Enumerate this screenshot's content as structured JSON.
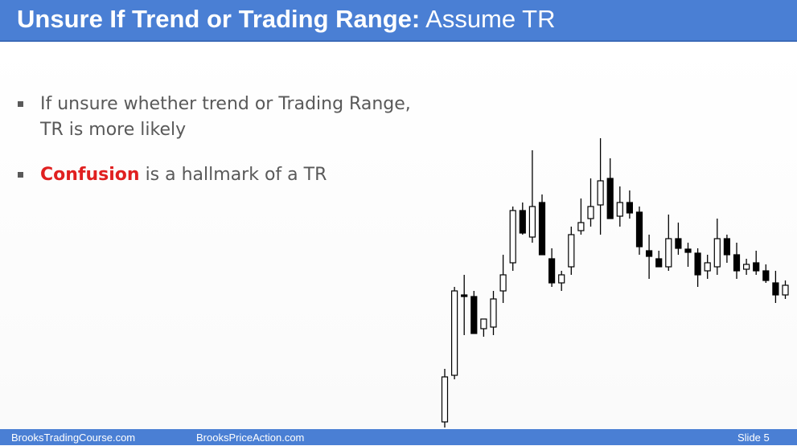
{
  "title": {
    "bold": "Unsure If Trend or Trading Range:",
    "normal": "Assume TR"
  },
  "bullets": [
    {
      "line1": "If unsure whether trend or Trading Range,",
      "line2": "TR is more likely"
    },
    {
      "emphasis": "Confusion",
      "rest": " is a hallmark of a TR"
    }
  ],
  "footer": {
    "left": "BrooksTradingCourse.com",
    "center": "BrooksPriceAction.com",
    "right": "Slide  5"
  },
  "colors": {
    "title_bar": "#4a7fd4",
    "emphasis": "#e02020",
    "bullet_text": "#595959"
  },
  "chart_data": {
    "type": "candlestick",
    "bars": [
      {
        "o": 2,
        "h": 68,
        "l": -5,
        "c": 58
      },
      {
        "o": 60,
        "h": 170,
        "l": 55,
        "c": 165
      },
      {
        "o": 160,
        "h": 185,
        "l": 110,
        "c": 158
      },
      {
        "o": 158,
        "h": 165,
        "l": 120,
        "c": 112
      },
      {
        "o": 118,
        "h": 125,
        "l": 108,
        "c": 130
      },
      {
        "o": 120,
        "h": 165,
        "l": 110,
        "c": 155
      },
      {
        "o": 165,
        "h": 210,
        "l": 150,
        "c": 185
      },
      {
        "o": 200,
        "h": 270,
        "l": 190,
        "c": 265
      },
      {
        "o": 265,
        "h": 275,
        "l": 235,
        "c": 237
      },
      {
        "o": 232,
        "h": 340,
        "l": 225,
        "c": 270
      },
      {
        "o": 275,
        "h": 285,
        "l": 210,
        "c": 210
      },
      {
        "o": 205,
        "h": 218,
        "l": 170,
        "c": 175
      },
      {
        "o": 175,
        "h": 190,
        "l": 165,
        "c": 185
      },
      {
        "o": 195,
        "h": 245,
        "l": 185,
        "c": 235
      },
      {
        "o": 240,
        "h": 280,
        "l": 235,
        "c": 250
      },
      {
        "o": 255,
        "h": 305,
        "l": 245,
        "c": 270
      },
      {
        "o": 272,
        "h": 355,
        "l": 235,
        "c": 302
      },
      {
        "o": 305,
        "h": 330,
        "l": 255,
        "c": 255
      },
      {
        "o": 258,
        "h": 295,
        "l": 245,
        "c": 275
      },
      {
        "o": 275,
        "h": 290,
        "l": 255,
        "c": 262
      },
      {
        "o": 263,
        "h": 270,
        "l": 210,
        "c": 220
      },
      {
        "o": 215,
        "h": 235,
        "l": 180,
        "c": 208
      },
      {
        "o": 205,
        "h": 215,
        "l": 195,
        "c": 195
      },
      {
        "o": 195,
        "h": 260,
        "l": 190,
        "c": 230
      },
      {
        "o": 230,
        "h": 250,
        "l": 210,
        "c": 218
      },
      {
        "o": 217,
        "h": 225,
        "l": 195,
        "c": 213
      },
      {
        "o": 212,
        "h": 218,
        "l": 170,
        "c": 185
      },
      {
        "o": 190,
        "h": 210,
        "l": 180,
        "c": 200
      },
      {
        "o": 195,
        "h": 255,
        "l": 185,
        "c": 230
      },
      {
        "o": 230,
        "h": 235,
        "l": 200,
        "c": 210
      },
      {
        "o": 210,
        "h": 225,
        "l": 180,
        "c": 190
      },
      {
        "o": 192,
        "h": 205,
        "l": 185,
        "c": 198
      },
      {
        "o": 200,
        "h": 215,
        "l": 185,
        "c": 190
      },
      {
        "o": 190,
        "h": 198,
        "l": 175,
        "c": 178
      },
      {
        "o": 175,
        "h": 190,
        "l": 150,
        "c": 160
      },
      {
        "o": 160,
        "h": 178,
        "l": 155,
        "c": 172
      }
    ]
  }
}
